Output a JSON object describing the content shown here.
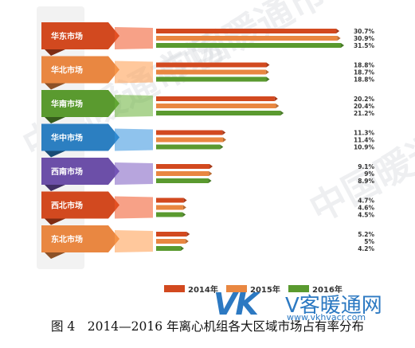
{
  "chart_data": {
    "type": "bar",
    "orientation": "horizontal",
    "categories": [
      "华东市场",
      "华北市场",
      "华南市场",
      "华中市场",
      "西南市场",
      "西北市场",
      "东北市场"
    ],
    "series": [
      {
        "name": "2014年",
        "color": "#d2491f",
        "values": [
          30.7,
          18.8,
          20.2,
          11.3,
          9.1,
          4.7,
          5.2
        ]
      },
      {
        "name": "2015年",
        "color": "#e98741",
        "values": [
          30.9,
          18.7,
          20.4,
          11.4,
          9,
          4.6,
          5
        ]
      },
      {
        "name": "2016年",
        "color": "#5a9a2f",
        "values": [
          31.5,
          18.8,
          21.2,
          10.9,
          8.9,
          4.5,
          4.2
        ]
      }
    ],
    "value_labels": [
      [
        "30.7%",
        "30.9%",
        "31.5%"
      ],
      [
        "18.8%",
        "18.7%",
        "18.8%"
      ],
      [
        "20.2%",
        "20.4%",
        "21.2%"
      ],
      [
        "11.3%",
        "11.4%",
        "10.9%"
      ],
      [
        "9.1%",
        "9%",
        "8.9%"
      ],
      [
        "4.7%",
        "4.6%",
        "4.5%"
      ],
      [
        "5.2%",
        "5%",
        "4.2%"
      ]
    ],
    "region_colors": [
      "#d2491f",
      "#e98741",
      "#5a9a2f",
      "#2c7fc1",
      "#6c4fa8",
      "#d2491f",
      "#e98741"
    ],
    "xlim": [
      0,
      31.5
    ],
    "legend_position": "bottom",
    "grid": false
  },
  "caption": "图 4　2014—2016 年离心机组各大区域市场占有率分布",
  "watermark": {
    "brand": "VK",
    "name": "V客暖通网",
    "url": "www.vkhvacr.com",
    "text": "中国暖通市场"
  }
}
